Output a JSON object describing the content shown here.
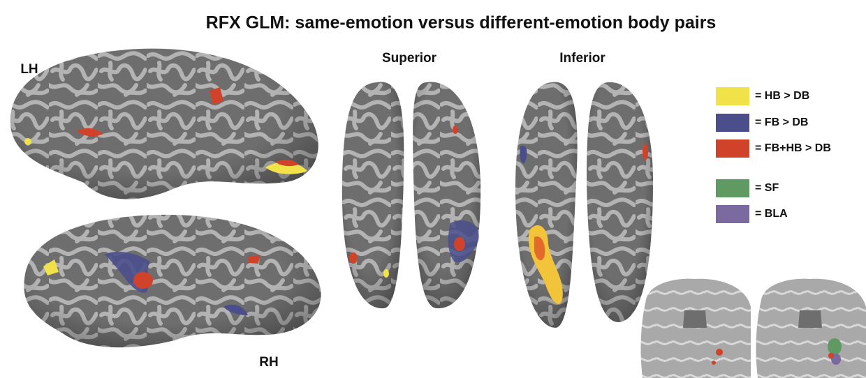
{
  "title": "RFX GLM: same-emotion versus different-emotion body pairs",
  "views": {
    "left_hemisphere": "LH",
    "right_hemisphere": "RH",
    "superior": "Superior",
    "inferior": "Inferior"
  },
  "legend": [
    {
      "label": "= HB > DB",
      "color": "#f2e24a"
    },
    {
      "label": "= FB > DB",
      "color": "#4a4f8c"
    },
    {
      "label": "= FB+HB > DB",
      "color": "#d0432a"
    },
    {
      "label": "= SF",
      "color": "#5f9a62"
    },
    {
      "label": "= BLA",
      "color": "#7a6aa0"
    }
  ]
}
